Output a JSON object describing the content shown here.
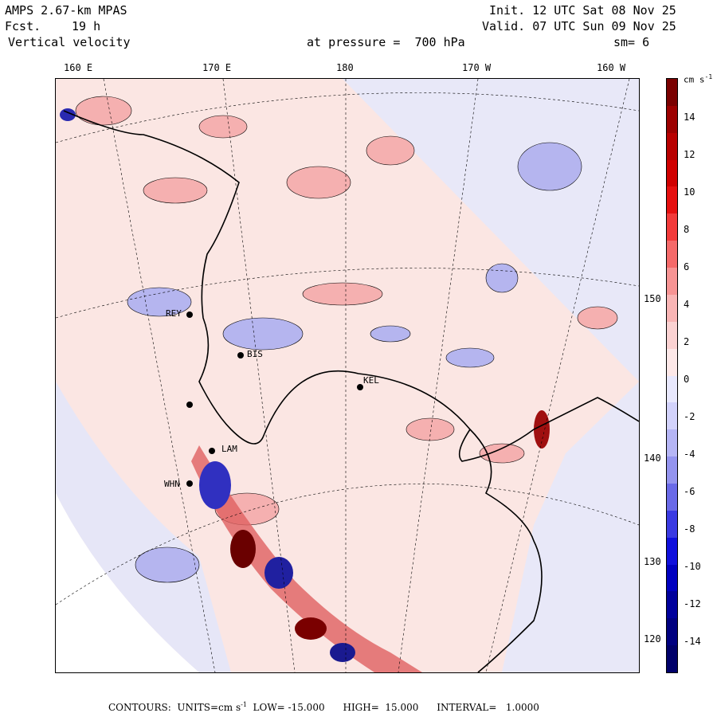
{
  "header": {
    "model": "AMPS 2.67-km MPAS",
    "fcst_label": "Fcst.",
    "fcst_value": "19 h",
    "field": "Vertical velocity",
    "init": "Init. 12 UTC Sat 08 Nov 25",
    "valid": "Valid. 07 UTC Sun 09 Nov 25",
    "level": "at pressure =  700 hPa",
    "smooth": "sm= 6"
  },
  "lon_labels": [
    "160 E",
    "170 E",
    "180",
    "170 W",
    "160 W"
  ],
  "lat_labels": [
    "150 W",
    "140 W",
    "130 W",
    "120 W"
  ],
  "stations": [
    "REY",
    "BIS",
    "LAM",
    "WHN",
    "KEL"
  ],
  "colorbar": {
    "units_label": "cm s",
    "units_exp": "-1",
    "labels": [
      "14",
      "12",
      "10",
      "8",
      "6",
      "4",
      "2",
      "0",
      "-2",
      "-4",
      "-6",
      "-8",
      "-10",
      "-12",
      "-14"
    ],
    "colors": [
      "#7a0000",
      "#9c0000",
      "#b80000",
      "#d00000",
      "#e61010",
      "#f23a3a",
      "#f56a6a",
      "#f79494",
      "#f9b5b5",
      "#fbd2d2",
      "#fde8e8",
      "#e8e8fd",
      "#d2d2fb",
      "#b5b5f5",
      "#9494ef",
      "#6a6ae8",
      "#3a3ae2",
      "#1010dc",
      "#0000c0",
      "#00009c",
      "#000080",
      "#00006a"
    ]
  },
  "footer": {
    "text": "CONTOURS:  UNITS=cm s",
    "exp": "-1",
    "rest": "  LOW= -15.000      HIGH=  15.000      INTERVAL=   1.0000"
  },
  "colors": {
    "land_pink": "#fbe6e3",
    "ocean_lavender": "#e8e8f8",
    "red_strong": "#c81e1e",
    "blue_strong": "#2828c8"
  }
}
